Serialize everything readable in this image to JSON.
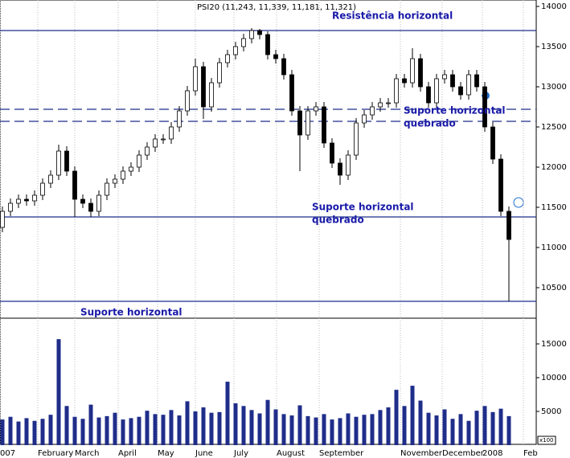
{
  "chart_data": [
    {
      "type": "candlestick",
      "title": "PSI20 (11,243, 11,339, 11,181, 11,321)",
      "color_up": "#ffffff",
      "color_down": "#000000",
      "ylim": [
        10130,
        14080
      ],
      "yticks": [
        10500,
        11000,
        11500,
        12000,
        12500,
        13000,
        13500,
        14000
      ],
      "open": [
        11250,
        11450,
        11550,
        11600,
        11580,
        11650,
        11800,
        11900,
        12200,
        11950,
        11600,
        11550,
        11450,
        11650,
        11800,
        11850,
        11950,
        12000,
        12150,
        12250,
        12350,
        12350,
        12500,
        12700,
        12950,
        13250,
        12750,
        13050,
        13300,
        13400,
        13500,
        13600,
        13700,
        13650,
        13400,
        13350,
        13150,
        12700,
        12400,
        12700,
        12750,
        12300,
        12050,
        11900,
        12150,
        12550,
        12650,
        12750,
        12800,
        12800,
        13100,
        13050,
        13350,
        13000,
        12800,
        13100,
        13150,
        13000,
        12900,
        13150,
        13000,
        12500,
        12100,
        11450
      ],
      "high": [
        11510,
        11610,
        11660,
        11660,
        11710,
        11860,
        11960,
        12280,
        12260,
        12010,
        11660,
        11610,
        11710,
        11860,
        11910,
        12010,
        12060,
        12210,
        12310,
        12410,
        12410,
        12560,
        12760,
        13010,
        13350,
        13310,
        13110,
        13360,
        13460,
        13560,
        13660,
        13730,
        13720,
        13690,
        13460,
        13410,
        13210,
        12760,
        12760,
        12810,
        12810,
        12360,
        12110,
        12210,
        12610,
        12710,
        12810,
        12860,
        12860,
        13160,
        13160,
        13480,
        13410,
        13060,
        13160,
        13210,
        13210,
        13060,
        13210,
        13210,
        13060,
        12560,
        12160,
        11510
      ],
      "low": [
        11190,
        11390,
        11490,
        11520,
        11520,
        11590,
        11740,
        11840,
        11890,
        11380,
        11490,
        11380,
        11390,
        11590,
        11740,
        11790,
        11890,
        11940,
        12090,
        12190,
        12290,
        12290,
        12440,
        12640,
        12890,
        12600,
        12690,
        12990,
        13240,
        13340,
        13440,
        13540,
        13590,
        13340,
        13290,
        13090,
        12640,
        11950,
        12340,
        12640,
        12240,
        11990,
        11780,
        11840,
        12090,
        12490,
        12590,
        12690,
        12740,
        12740,
        12990,
        12990,
        12940,
        12740,
        12740,
        13040,
        12940,
        12840,
        12840,
        12940,
        12440,
        12040,
        11390,
        10330
      ],
      "close": [
        11450,
        11550,
        11600,
        11580,
        11650,
        11800,
        11900,
        12200,
        11950,
        11600,
        11550,
        11450,
        11650,
        11800,
        11850,
        11950,
        12000,
        12150,
        12250,
        12350,
        12350,
        12500,
        12700,
        12950,
        13250,
        12750,
        13050,
        13300,
        13400,
        13500,
        13600,
        13700,
        13650,
        13400,
        13350,
        13150,
        12700,
        12400,
        12700,
        12750,
        12300,
        12050,
        11900,
        12150,
        12550,
        12650,
        12750,
        12800,
        12800,
        13100,
        13050,
        13350,
        13000,
        12800,
        13100,
        13150,
        13000,
        12900,
        13150,
        13000,
        12500,
        12100,
        11450,
        11100
      ],
      "hlines": [
        {
          "value": 13700,
          "style": "solid"
        },
        {
          "value": 12720,
          "style": "dashed"
        },
        {
          "value": 12570,
          "style": "dashed"
        },
        {
          "value": 11380,
          "style": "solid"
        },
        {
          "value": 10330,
          "style": "solid"
        }
      ],
      "line_color": "#1f2d8a",
      "annotations": [
        {
          "lines": [
            "Resistência horizontal"
          ]
        },
        {
          "lines": [
            "Suporte horizontal",
            "quebrado"
          ]
        },
        {
          "lines": [
            "Suporte horizontal",
            "quebrado"
          ]
        },
        {
          "lines": [
            "Suporte horizontal"
          ]
        }
      ]
    },
    {
      "type": "bar",
      "unit_label": "x100",
      "color": "#1f2d8a",
      "ylim": [
        0,
        18570
      ],
      "yticks": [
        5000,
        10000,
        15000
      ],
      "values": [
        3800,
        4200,
        3500,
        4000,
        3600,
        3900,
        4500,
        15700,
        5800,
        4200,
        3900,
        6000,
        4100,
        4300,
        4800,
        3800,
        4000,
        4200,
        5100,
        4600,
        4500,
        5200,
        4400,
        6500,
        5000,
        5600,
        4800,
        4900,
        9400,
        6200,
        5800,
        5200,
        4700,
        6700,
        5300,
        4600,
        4400,
        5900,
        4300,
        4100,
        4600,
        3800,
        4000,
        4700,
        4200,
        4500,
        4600,
        5200,
        5600,
        8200,
        5800,
        8800,
        6600,
        4800,
        4400,
        5300,
        3900,
        4600,
        3600,
        5100,
        5800,
        4900,
        5400,
        4300
      ],
      "xticks": [
        {
          "value": -0.3,
          "label": "007"
        },
        {
          "value": 4.4,
          "label": "February"
        },
        {
          "value": 9,
          "label": "March"
        },
        {
          "value": 14.4,
          "label": "April"
        },
        {
          "value": 19.3,
          "label": "May"
        },
        {
          "value": 24,
          "label": "June"
        },
        {
          "value": 28.8,
          "label": "July"
        },
        {
          "value": 34.1,
          "label": "August"
        },
        {
          "value": 39.4,
          "label": "September"
        },
        {
          "value": 49.5,
          "label": "November"
        },
        {
          "value": 54.7,
          "label": "December"
        },
        {
          "value": 59.7,
          "label": "2008"
        },
        {
          "value": 64.8,
          "label": "Feb"
        }
      ]
    }
  ]
}
